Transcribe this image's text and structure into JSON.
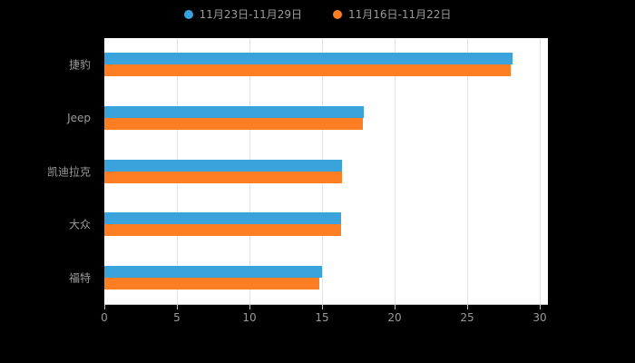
{
  "colors": {
    "background": "#000000",
    "plot_background": "#ffffff",
    "series_blue": "#3aa3dc",
    "series_orange": "#fd7e23",
    "grid_line": "#e3e3e3",
    "axis_line": "#c9c9c9",
    "label_text": "#9a9a9a"
  },
  "legend": {
    "items": [
      {
        "label": "11月23日-11月29日",
        "color": "#3aa3dc"
      },
      {
        "label": "11月16日-11月22日",
        "color": "#fd7e23"
      }
    ]
  },
  "chart_data": {
    "type": "bar",
    "orientation": "horizontal",
    "title": "",
    "xlabel": "",
    "ylabel": "",
    "categories": [
      "捷豹",
      "Jeep",
      "凯迪拉克",
      "大众",
      "福特"
    ],
    "series": [
      {
        "name": "11月23日-11月29日",
        "color": "#3aa3dc",
        "values": [
          28.1,
          17.9,
          16.4,
          16.3,
          15.0
        ]
      },
      {
        "name": "11月16日-11月22日",
        "color": "#fd7e23",
        "values": [
          28.0,
          17.8,
          16.4,
          16.3,
          14.8
        ]
      }
    ],
    "xlim": [
      0,
      30
    ],
    "xticks": [
      0,
      5,
      10,
      15,
      20,
      25,
      30
    ],
    "grid": true,
    "legend_position": "top-center"
  }
}
